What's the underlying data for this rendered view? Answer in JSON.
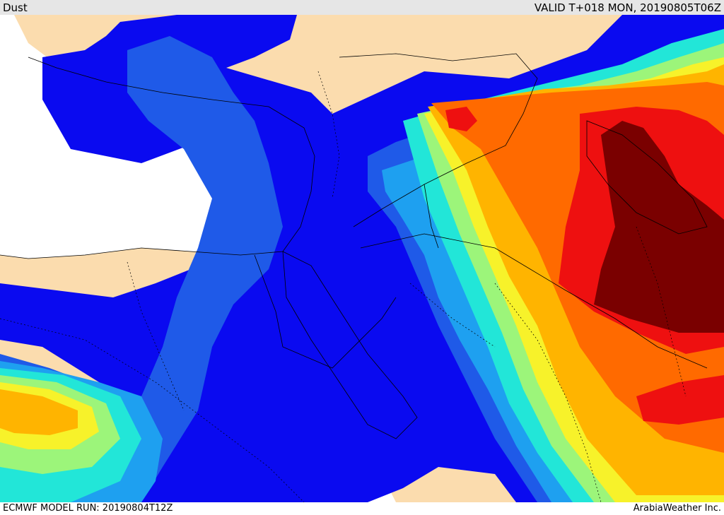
{
  "header": {
    "title": "Dust",
    "valid": "VALID T+018 MON, 20190805T06Z"
  },
  "footer": {
    "model_run": "ECMWF MODEL RUN: 20190804T12Z",
    "credit": "ArabiaWeather Inc."
  },
  "colors": {
    "land": "#fbdcae",
    "sea": "#ffffff",
    "level1": "#0a0af0",
    "level2": "#1f5ae8",
    "level3": "#1ea0f0",
    "level4": "#22e6d8",
    "level5": "#9cf57a",
    "level6": "#f7f22a",
    "level7": "#ffb400",
    "level8": "#ff6a00",
    "level9": "#ee1010",
    "level10": "#7a0000"
  }
}
